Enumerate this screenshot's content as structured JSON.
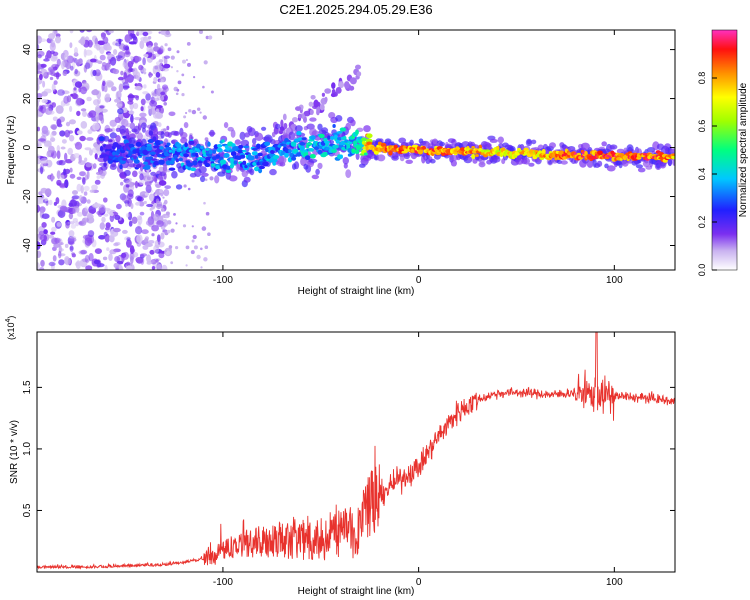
{
  "figure_title": "C2E1.2025.294.05.29.E36",
  "chart_data": [
    {
      "type": "heatmap",
      "title": "C2E1.2025.294.05.29.E36",
      "xlabel": "Height of straight line (km)",
      "ylabel": "Frequency (Hz)",
      "xlim": [
        -195,
        131
      ],
      "ylim": [
        -50,
        48
      ],
      "xticks": [
        -100,
        0,
        100
      ],
      "xtick_labels": [
        "-100",
        "0",
        "100"
      ],
      "yticks": [
        -40,
        -20,
        0,
        20,
        40
      ],
      "ytick_labels": [
        "-40",
        "-20",
        "0",
        "20",
        "40"
      ],
      "colorbar": {
        "label": "Normalized spectral amplitude",
        "range": [
          0,
          1
        ],
        "ticks": [
          0,
          0.2,
          0.4,
          0.6,
          0.8
        ],
        "tick_labels": [
          "0.0",
          "0.2",
          "0.4",
          "0.6",
          "0.8"
        ]
      },
      "dominant_ridge": {
        "height_km": [
          -160,
          -140,
          -120,
          -100,
          -80,
          -60,
          -50,
          -40,
          -30,
          -25,
          0,
          20,
          40,
          60,
          80,
          100,
          120,
          131
        ],
        "frequency_hz": [
          -2,
          -2,
          -3,
          -4,
          -3,
          0,
          1,
          2,
          1,
          0,
          -1,
          -1.5,
          -2,
          -2.5,
          -3,
          -3.5,
          -4,
          -4
        ],
        "peak_amplitude": [
          0.3,
          0.35,
          0.4,
          0.45,
          0.4,
          0.45,
          0.5,
          0.45,
          0.55,
          0.95,
          0.95,
          0.95,
          0.8,
          0.85,
          0.98,
          0.98,
          0.97,
          0.9
        ]
      },
      "diffuse_noise_region_km": [
        -195,
        -140
      ]
    },
    {
      "type": "line",
      "xlabel": "Height of straight line (km)",
      "ylabel": "SNR (10 * v/v)",
      "multiplier_label": "(x10",
      "multiplier_exponent": "4",
      "multiplier_suffix": ")",
      "xlim": [
        -195,
        131
      ],
      "ylim": [
        0,
        1.95
      ],
      "xticks": [
        -100,
        0,
        100
      ],
      "xtick_labels": [
        "-100",
        "0",
        "100"
      ],
      "yticks": [
        0.5,
        1.0,
        1.5
      ],
      "ytick_labels": [
        "0.5",
        "1.0",
        "1.5"
      ],
      "series": [
        {
          "name": "SNR",
          "color": "#e8322d",
          "x": [
            -195,
            -170,
            -150,
            -130,
            -115,
            -105,
            -100,
            -90,
            -80,
            -70,
            -60,
            -50,
            -40,
            -30,
            -25,
            -20,
            -10,
            0,
            10,
            20,
            30,
            40,
            50,
            60,
            70,
            80,
            90,
            100,
            110,
            120,
            131
          ],
          "y": [
            0.03,
            0.03,
            0.04,
            0.05,
            0.08,
            0.12,
            0.18,
            0.22,
            0.25,
            0.27,
            0.28,
            0.3,
            0.33,
            0.36,
            0.55,
            0.62,
            0.75,
            0.85,
            1.1,
            1.3,
            1.4,
            1.45,
            1.46,
            1.45,
            1.44,
            1.46,
            1.44,
            1.43,
            1.42,
            1.41,
            1.38
          ]
        }
      ]
    }
  ]
}
